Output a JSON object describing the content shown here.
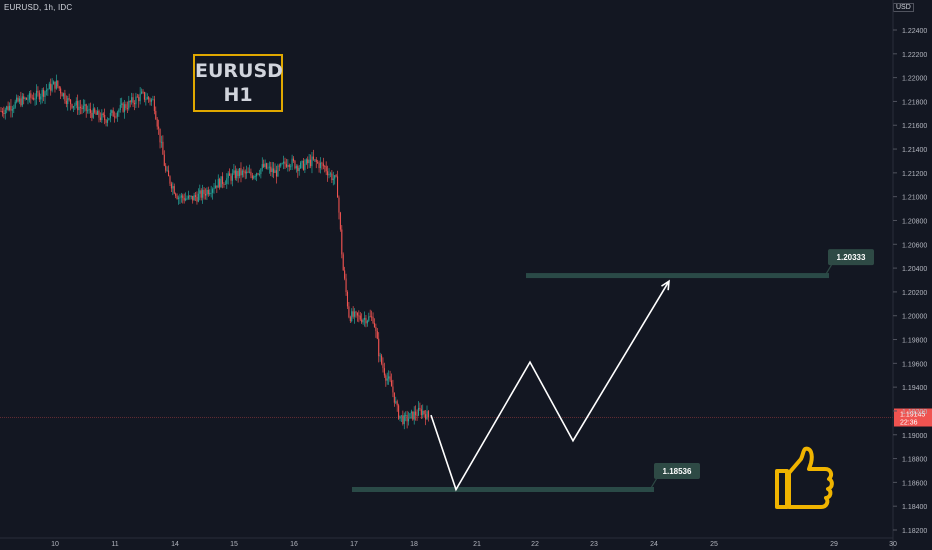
{
  "header": {
    "symbol_line": "EURUSD, 1h, IDC"
  },
  "currency": "USD",
  "title_box": {
    "line1": "EURUSD",
    "line2": "H1"
  },
  "annotations": {
    "target_label": "1.20333",
    "support_label": "1.18536",
    "current_price": "1.19145",
    "countdown": "22:36"
  },
  "thumbs_up_icon": "thumbs-up-icon",
  "colors": {
    "background": "#131722",
    "bull_candle": "#26a69a",
    "bear_candle": "#ef5350",
    "zone_line": "#2a4a47",
    "label_bg": "#2e4a45",
    "title_border": "#e0a800",
    "thumb": "#f0b400",
    "current_price_line": "#ef5350"
  },
  "chart_data": {
    "type": "candlestick",
    "x_ticks": [
      "10",
      "11",
      "14",
      "15",
      "16",
      "17",
      "18",
      "21",
      "22",
      "23",
      "24",
      "25",
      "29",
      "30"
    ],
    "y_ticks": [
      "1.22400",
      "1.22200",
      "1.22000",
      "1.21800",
      "1.21600",
      "1.21400",
      "1.21200",
      "1.21000",
      "1.20800",
      "1.20600",
      "1.20400",
      "1.20200",
      "1.20000",
      "1.19800",
      "1.19600",
      "1.19400",
      "1.19200",
      "1.19000",
      "1.18800",
      "1.18600",
      "1.18400",
      "1.18200"
    ],
    "ylim": [
      1.1815,
      1.2255
    ],
    "price_path": [
      [
        0,
        1.2172
      ],
      [
        3,
        1.218
      ],
      [
        6,
        1.2185
      ],
      [
        9,
        1.2195
      ],
      [
        11,
        1.218
      ],
      [
        13,
        1.2175
      ],
      [
        15,
        1.217
      ],
      [
        17,
        1.2165
      ],
      [
        19,
        1.2172
      ],
      [
        21,
        1.2178
      ],
      [
        23,
        1.2185
      ],
      [
        25,
        1.218
      ],
      [
        27,
        1.212
      ],
      [
        29,
        1.21
      ],
      [
        31,
        1.2098
      ],
      [
        33,
        1.2102
      ],
      [
        35,
        1.211
      ],
      [
        37,
        1.2115
      ],
      [
        39,
        1.212
      ],
      [
        41,
        1.2118
      ],
      [
        43,
        1.2125
      ],
      [
        45,
        1.212
      ],
      [
        47,
        1.213
      ],
      [
        49,
        1.2125
      ],
      [
        51,
        1.213
      ],
      [
        53,
        1.2125
      ],
      [
        54,
        1.2118
      ],
      [
        55,
        1.2112
      ],
      [
        56,
        1.204
      ],
      [
        57,
        1.2
      ],
      [
        59,
        1.1998
      ],
      [
        61,
        1.1998
      ],
      [
        62,
        1.1965
      ],
      [
        63,
        1.195
      ],
      [
        64,
        1.194
      ],
      [
        65,
        1.1918
      ],
      [
        66,
        1.1912
      ],
      [
        67,
        1.1915
      ],
      [
        68,
        1.1918
      ],
      [
        69,
        1.192
      ],
      [
        70,
        1.1915
      ]
    ],
    "levels": [
      {
        "label": "1.20333",
        "value": 1.20333
      },
      {
        "label": "1.18536",
        "value": 1.18536
      }
    ],
    "projection_path": [
      [
        "18",
        1.19165
      ],
      [
        "21",
        1.1854
      ],
      [
        "22",
        1.1961
      ],
      [
        "23",
        1.1895
      ],
      [
        "24",
        1.2029
      ]
    ],
    "current_price": 1.19145
  }
}
